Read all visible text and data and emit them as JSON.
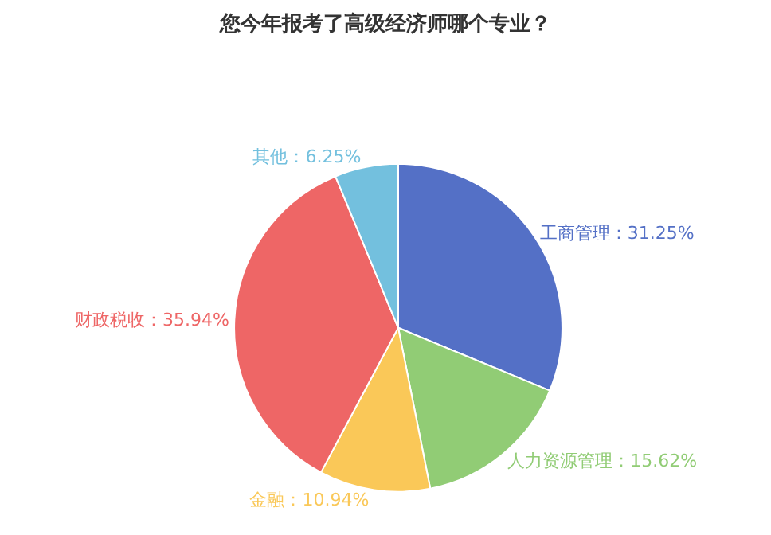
{
  "chart_data": {
    "type": "pie",
    "title": "您今年报考了高级经济师哪个专业？",
    "categories": [
      "工商管理",
      "人力资源管理",
      "金融",
      "财政税收",
      "其他"
    ],
    "values": [
      31.25,
      15.62,
      10.94,
      35.94,
      6.25
    ],
    "colors": [
      "#5470c6",
      "#91cc75",
      "#fac858",
      "#ee6666",
      "#73c0de"
    ],
    "value_labels": [
      "31.25%",
      "15.62%",
      "10.94%",
      "35.94%",
      "6.25%"
    ],
    "legend": false
  }
}
